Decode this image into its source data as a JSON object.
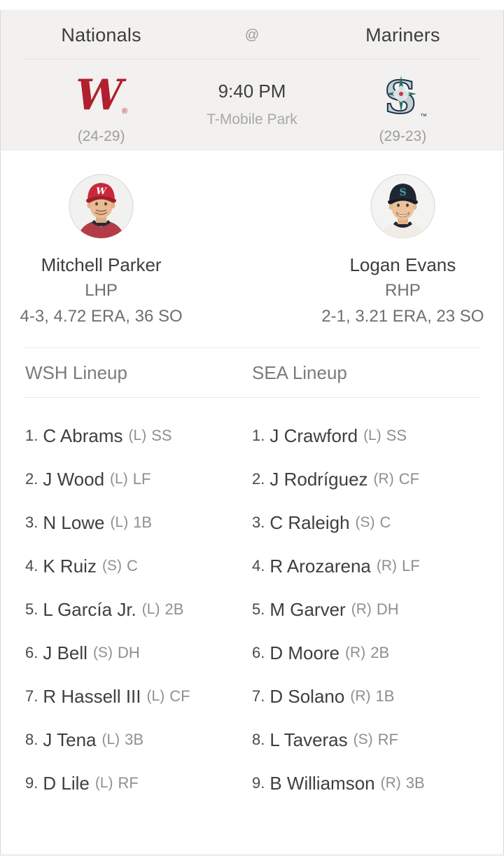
{
  "header": {
    "at_symbol": "@"
  },
  "game": {
    "time": "9:40 PM",
    "venue": "T-Mobile Park"
  },
  "teams": {
    "away": {
      "name": "Nationals",
      "abbr": "WSH",
      "record": "(24-29)",
      "logo_letter": "W",
      "logo_mark": "®",
      "logo_color": "#b0202f"
    },
    "home": {
      "name": "Mariners",
      "abbr": "SEA",
      "record": "(29-23)",
      "logo_letter": "S",
      "logo_mark": "™",
      "logo_silver": "#c7ced4",
      "logo_navy": "#1a3349",
      "logo_teal": "#2a6e66",
      "logo_red": "#c23b43"
    }
  },
  "pitchers": {
    "away": {
      "name": "Mitchell Parker",
      "hand": "LHP",
      "stats": "4-3, 4.72 ERA, 36 SO",
      "cap_letter": "W"
    },
    "home": {
      "name": "Logan Evans",
      "hand": "RHP",
      "stats": "2-1, 3.21 ERA, 23 SO",
      "cap_letter": "S"
    }
  },
  "lineups": {
    "away": {
      "title": "WSH Lineup",
      "players": [
        {
          "order": "1.",
          "name": "C Abrams",
          "bats": "(L)",
          "position": "SS"
        },
        {
          "order": "2.",
          "name": "J Wood",
          "bats": "(L)",
          "position": "LF"
        },
        {
          "order": "3.",
          "name": "N Lowe",
          "bats": "(L)",
          "position": "1B"
        },
        {
          "order": "4.",
          "name": "K Ruiz",
          "bats": "(S)",
          "position": "C"
        },
        {
          "order": "5.",
          "name": "L García Jr.",
          "bats": "(L)",
          "position": "2B"
        },
        {
          "order": "6.",
          "name": "J Bell",
          "bats": "(S)",
          "position": "DH"
        },
        {
          "order": "7.",
          "name": "R Hassell III",
          "bats": "(L)",
          "position": "CF"
        },
        {
          "order": "8.",
          "name": "J Tena",
          "bats": "(L)",
          "position": "3B"
        },
        {
          "order": "9.",
          "name": "D Lile",
          "bats": "(L)",
          "position": "RF"
        }
      ]
    },
    "home": {
      "title": "SEA Lineup",
      "players": [
        {
          "order": "1.",
          "name": "J Crawford",
          "bats": "(L)",
          "position": "SS"
        },
        {
          "order": "2.",
          "name": "J Rodríguez",
          "bats": "(R)",
          "position": "CF"
        },
        {
          "order": "3.",
          "name": "C Raleigh",
          "bats": "(S)",
          "position": "C"
        },
        {
          "order": "4.",
          "name": "R Arozarena",
          "bats": "(R)",
          "position": "LF"
        },
        {
          "order": "5.",
          "name": "M Garver",
          "bats": "(R)",
          "position": "DH"
        },
        {
          "order": "6.",
          "name": "D Moore",
          "bats": "(R)",
          "position": "2B"
        },
        {
          "order": "7.",
          "name": "D Solano",
          "bats": "(R)",
          "position": "1B"
        },
        {
          "order": "8.",
          "name": "L Taveras",
          "bats": "(S)",
          "position": "RF"
        },
        {
          "order": "9.",
          "name": "B Williamson",
          "bats": "(R)",
          "position": "3B"
        }
      ]
    }
  }
}
